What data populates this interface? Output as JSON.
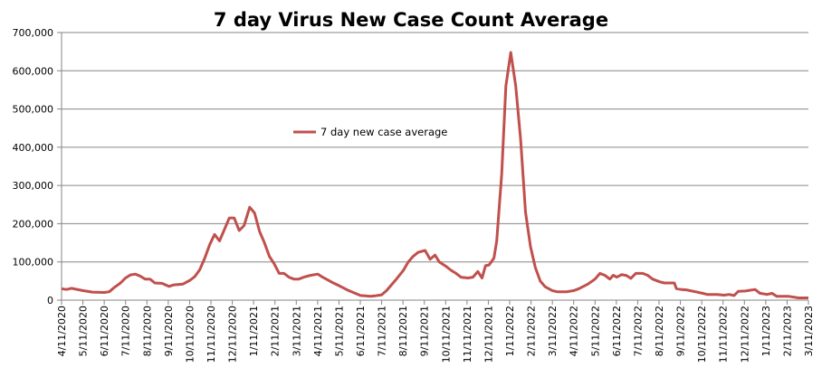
{
  "chart_data": {
    "type": "line",
    "title": "7 day Virus New Case Count Average",
    "xlabel": "",
    "ylabel": "",
    "ylim": [
      0,
      700000
    ],
    "yticks": [
      "0",
      "100,000",
      "200,000",
      "300,000",
      "400,000",
      "500,000",
      "600,000",
      "700,000"
    ],
    "xlim": [
      "2020-04-11",
      "2023-03-11"
    ],
    "xticks": [
      "4/11/2020",
      "5/11/2020",
      "6/11/2020",
      "7/11/2020",
      "8/11/2020",
      "9/11/2020",
      "10/11/2020",
      "11/11/2020",
      "12/11/2020",
      "1/11/2021",
      "2/11/2021",
      "3/11/2021",
      "4/11/2021",
      "5/11/2021",
      "6/11/2021",
      "7/11/2021",
      "8/11/2021",
      "9/11/2021",
      "10/11/2021",
      "11/11/2021",
      "12/11/2021",
      "1/11/2022",
      "2/11/2022",
      "3/11/2022",
      "4/11/2022",
      "5/11/2022",
      "6/11/2022",
      "7/11/2022",
      "8/11/2022",
      "9/11/2022",
      "10/11/2022",
      "11/11/2022",
      "12/11/2022",
      "1/11/2023",
      "2/11/2023",
      "3/11/2023"
    ],
    "grid": true,
    "legend": "upper-center",
    "series": [
      {
        "name": "7 day new case average",
        "color": "#c0504d",
        "x": [
          "2020-04-11",
          "2020-04-18",
          "2020-04-25",
          "2020-05-11",
          "2020-05-25",
          "2020-06-11",
          "2020-06-18",
          "2020-06-25",
          "2020-07-04",
          "2020-07-11",
          "2020-07-18",
          "2020-07-25",
          "2020-08-01",
          "2020-08-08",
          "2020-08-15",
          "2020-08-22",
          "2020-09-01",
          "2020-09-11",
          "2020-09-18",
          "2020-10-01",
          "2020-10-11",
          "2020-10-18",
          "2020-10-25",
          "2020-11-01",
          "2020-11-08",
          "2020-11-15",
          "2020-11-22",
          "2020-11-29",
          "2020-12-06",
          "2020-12-13",
          "2020-12-20",
          "2020-12-27",
          "2021-01-04",
          "2021-01-11",
          "2021-01-18",
          "2021-01-25",
          "2021-02-01",
          "2021-02-08",
          "2021-02-15",
          "2021-02-22",
          "2021-03-01",
          "2021-03-08",
          "2021-03-15",
          "2021-03-22",
          "2021-04-01",
          "2021-04-11",
          "2021-04-18",
          "2021-05-01",
          "2021-05-11",
          "2021-05-25",
          "2021-06-11",
          "2021-06-18",
          "2021-06-25",
          "2021-07-01",
          "2021-07-11",
          "2021-07-18",
          "2021-07-25",
          "2021-08-01",
          "2021-08-11",
          "2021-08-18",
          "2021-08-25",
          "2021-09-01",
          "2021-09-11",
          "2021-09-18",
          "2021-09-25",
          "2021-10-01",
          "2021-10-11",
          "2021-10-18",
          "2021-10-25",
          "2021-11-01",
          "2021-11-11",
          "2021-11-18",
          "2021-11-25",
          "2021-12-01",
          "2021-12-06",
          "2021-12-11",
          "2021-12-18",
          "2021-12-22",
          "2021-12-29",
          "2022-01-04",
          "2022-01-11",
          "2022-01-18",
          "2022-01-25",
          "2022-02-01",
          "2022-02-08",
          "2022-02-15",
          "2022-02-22",
          "2022-03-01",
          "2022-03-11",
          "2022-03-18",
          "2022-04-01",
          "2022-04-11",
          "2022-04-18",
          "2022-05-01",
          "2022-05-11",
          "2022-05-18",
          "2022-05-25",
          "2022-06-01",
          "2022-06-06",
          "2022-06-11",
          "2022-06-18",
          "2022-06-25",
          "2022-07-01",
          "2022-07-08",
          "2022-07-18",
          "2022-07-25",
          "2022-08-01",
          "2022-08-11",
          "2022-08-18",
          "2022-09-01",
          "2022-09-04",
          "2022-09-11",
          "2022-09-18",
          "2022-10-01",
          "2022-10-11",
          "2022-10-18",
          "2022-11-01",
          "2022-11-11",
          "2022-11-18",
          "2022-11-25",
          "2022-12-01",
          "2022-12-11",
          "2022-12-25",
          "2023-01-01",
          "2023-01-11",
          "2023-01-18",
          "2023-01-25",
          "2023-02-11",
          "2023-02-25",
          "2023-03-11"
        ],
        "y": [
          30000,
          28000,
          31000,
          25000,
          21000,
          20000,
          22000,
          33000,
          45000,
          58000,
          66000,
          68000,
          63000,
          55000,
          55000,
          45000,
          44000,
          36000,
          40000,
          42000,
          52000,
          62000,
          80000,
          110000,
          145000,
          172000,
          155000,
          185000,
          215000,
          215000,
          182000,
          195000,
          243000,
          228000,
          180000,
          150000,
          115000,
          95000,
          70000,
          70000,
          60000,
          55000,
          55000,
          60000,
          65000,
          68000,
          60000,
          47000,
          38000,
          25000,
          12000,
          11000,
          10000,
          11000,
          14000,
          25000,
          40000,
          55000,
          78000,
          100000,
          115000,
          125000,
          130000,
          107000,
          118000,
          100000,
          88000,
          78000,
          70000,
          60000,
          58000,
          60000,
          75000,
          58000,
          90000,
          92000,
          110000,
          155000,
          330000,
          560000,
          648000,
          560000,
          420000,
          230000,
          140000,
          85000,
          50000,
          35000,
          25000,
          22000,
          22000,
          25000,
          30000,
          42000,
          55000,
          70000,
          65000,
          55000,
          65000,
          60000,
          67000,
          64000,
          57000,
          70000,
          70000,
          65000,
          55000,
          48000,
          45000,
          45000,
          30000,
          28000,
          27000,
          22000,
          18000,
          15000,
          15000,
          13000,
          15000,
          12000,
          23000,
          24000,
          28000,
          18000,
          15000,
          18000,
          10000,
          10000,
          6000,
          6000
        ]
      }
    ]
  }
}
